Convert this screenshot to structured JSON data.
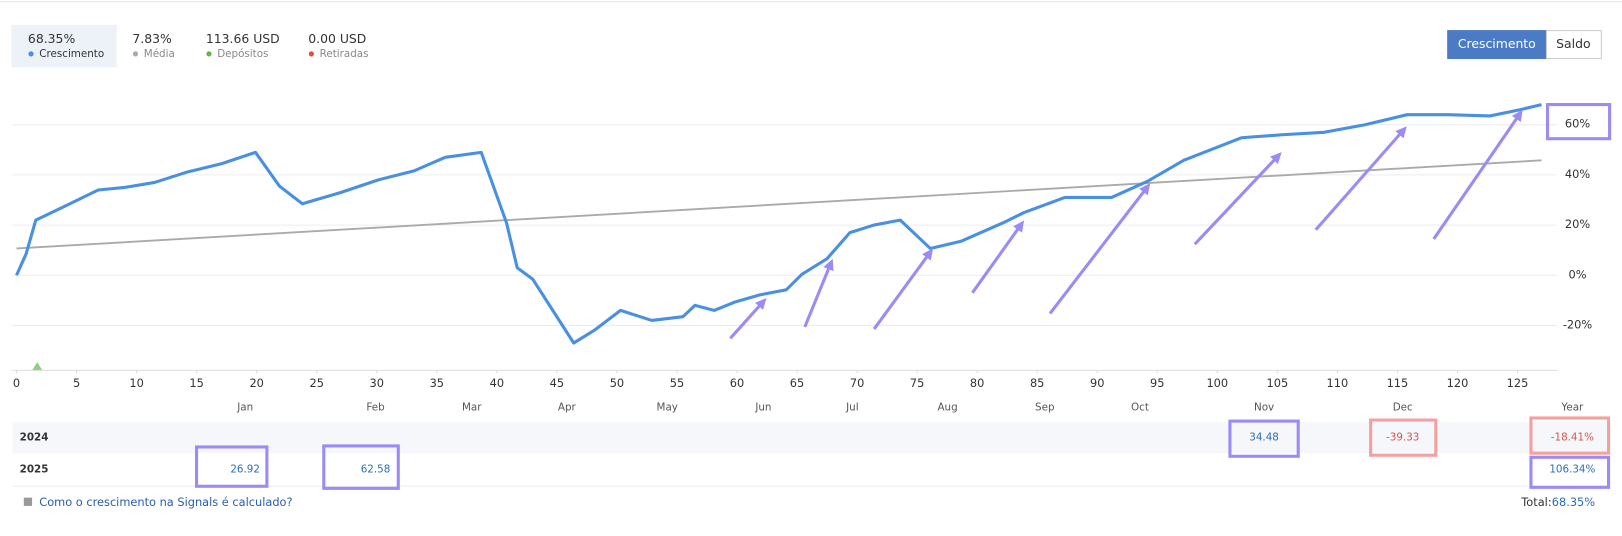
{
  "header": {
    "stats": [
      {
        "value": "68.35%",
        "label": "Crescimento"
      },
      {
        "value": "7.83%",
        "label": "Média"
      },
      {
        "value": "113.66 USD",
        "label": "Depósitos"
      },
      {
        "value": "0.00 USD",
        "label": "Retiradas"
      }
    ],
    "buttons": [
      "Crescimento",
      "Saldo"
    ]
  },
  "chart_data": {
    "type": "line",
    "series": [
      {
        "name": "Crescimento",
        "color": "#4a90e2",
        "x": [
          0,
          0.8,
          1.6,
          3.8,
          6.8,
          9.0,
          11.5,
          14.1,
          17.1,
          19.9,
          21.9,
          23.8,
          27.0,
          30.1,
          33.1,
          35.7,
          38.7,
          40.8,
          41.7,
          43.0,
          46.4,
          48.1,
          50.3,
          52.9,
          55.5,
          56.5,
          58.1,
          59.8,
          61.9,
          64.1,
          65.4,
          67.5,
          69.4,
          71.4,
          73.6,
          76.1,
          78.7,
          82.2,
          83.9,
          87.3,
          91.2,
          94.2,
          97.2,
          102.0,
          105.4,
          108.9,
          112.3,
          115.8,
          119.2,
          122.7,
          125.2,
          127.0
        ],
        "values": [
          0,
          8.6,
          22,
          27,
          34,
          35,
          37,
          41,
          44.5,
          49,
          35.5,
          28.5,
          33,
          38,
          41.6,
          47,
          49,
          21,
          3,
          -1.6,
          -27,
          -22,
          -14,
          -18,
          -16.5,
          -12,
          -14,
          -10.7,
          -7.8,
          -5.8,
          0.4,
          6.6,
          17,
          20,
          22,
          10.7,
          13.6,
          21,
          25,
          31,
          31,
          37.5,
          45.8,
          54.8,
          56,
          57,
          60,
          64,
          64,
          63.5,
          66,
          68
        ]
      },
      {
        "name": "Média",
        "color": "#aaaaaa",
        "x": [
          0,
          127
        ],
        "values": [
          10.7,
          45.8
        ]
      }
    ],
    "xlim": [
      0,
      127.5
    ],
    "ylim": [
      -38,
      72
    ],
    "xticks": [
      0,
      5,
      10,
      15,
      20,
      25,
      30,
      35,
      40,
      45,
      50,
      55,
      60,
      65,
      70,
      75,
      80,
      85,
      90,
      95,
      100,
      105,
      110,
      115,
      120,
      125
    ],
    "yticks": [
      {
        "value": -20,
        "label": "-20%"
      },
      {
        "value": 0,
        "label": "0%"
      },
      {
        "value": 20,
        "label": "20%"
      },
      {
        "value": 40,
        "label": "40%"
      },
      {
        "value": 60,
        "label": "60%"
      }
    ],
    "grid": true
  },
  "table": {
    "columns": [
      "Jan",
      "Feb",
      "Mar",
      "Apr",
      "May",
      "Jun",
      "Jul",
      "Aug",
      "Sep",
      "Oct",
      "Nov",
      "Dec",
      "Year"
    ],
    "rows": [
      {
        "year": "2024",
        "cells": [
          null,
          null,
          null,
          null,
          null,
          null,
          null,
          null,
          null,
          null,
          "34.48",
          "-39.33",
          "-18.41%"
        ]
      },
      {
        "year": "2025",
        "cells": [
          "26.92",
          "62.58",
          null,
          null,
          null,
          null,
          null,
          null,
          null,
          null,
          null,
          null,
          "106.34%"
        ]
      }
    ]
  },
  "footer": {
    "link": "Como o crescimento na Signals é calculado?",
    "total_label": "Total:",
    "total": "68.35%"
  }
}
